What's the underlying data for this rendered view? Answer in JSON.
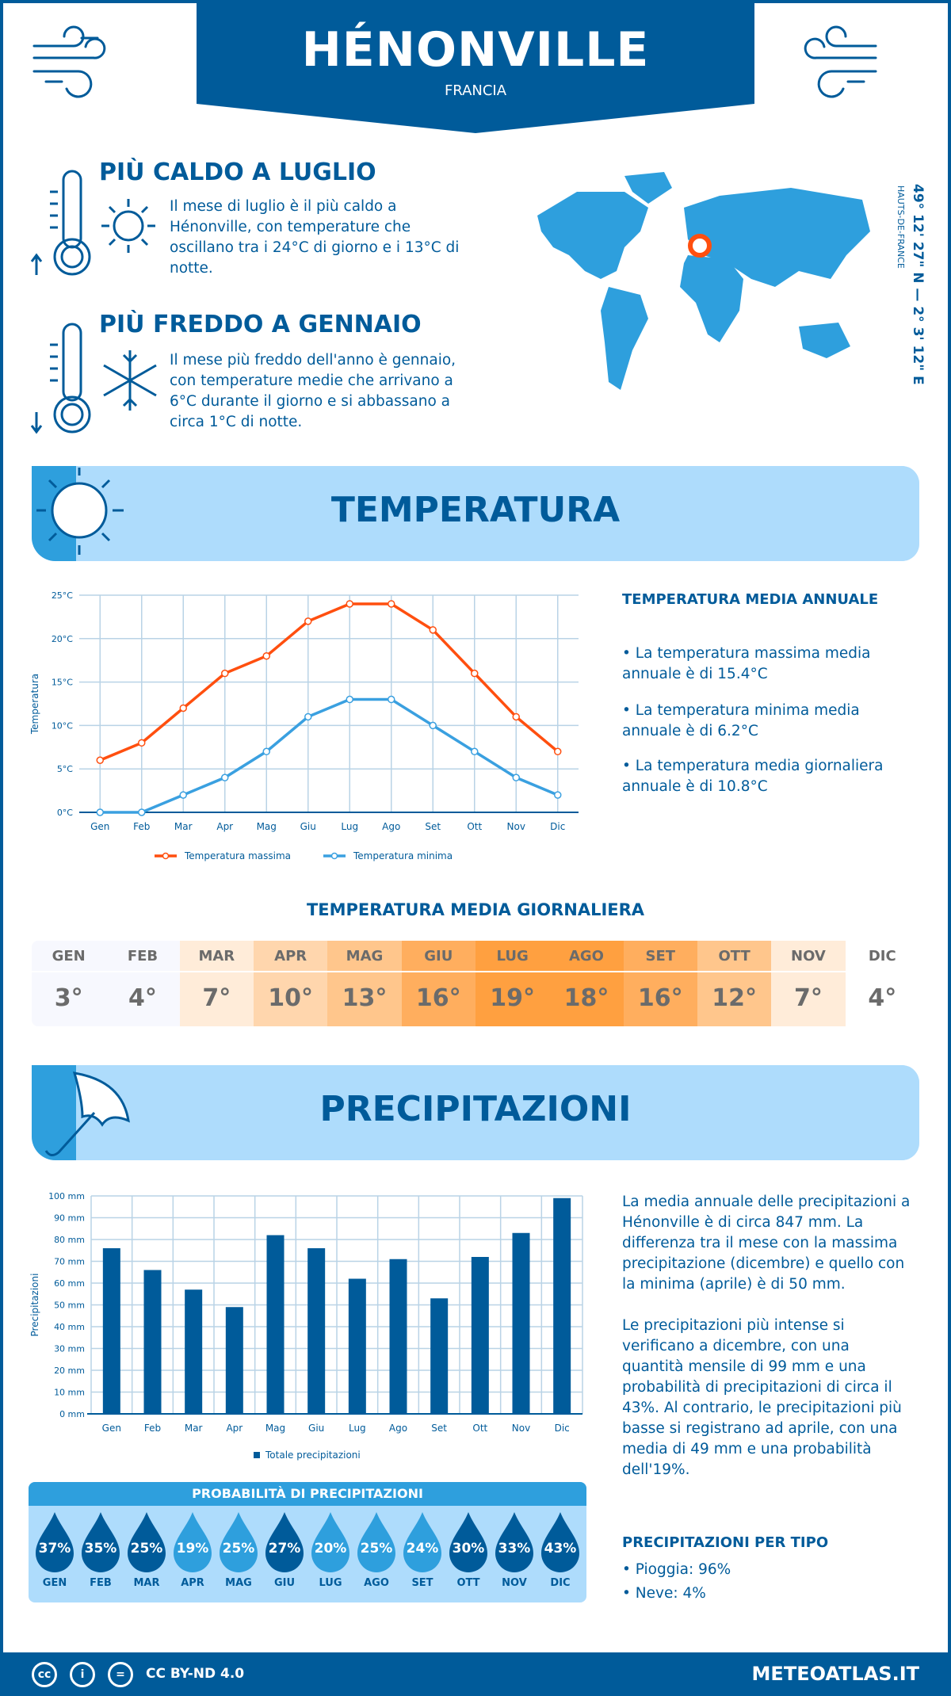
{
  "header": {
    "title": "HÉNONVILLE",
    "country": "FRANCIA"
  },
  "coords": {
    "text": "49° 12' 27\" N — 2° 3' 12\" E",
    "region": "HAUTS-DE-FRANCE"
  },
  "warmest": {
    "title": "PIÙ CALDO A LUGLIO",
    "text": "Il mese di luglio è il più caldo a Hénonville, con temperature che oscillano tra i 24°C di giorno e i 13°C di notte."
  },
  "coldest": {
    "title": "PIÙ FREDDO A GENNAIO",
    "text": "Il mese più freddo dell'anno è gennaio, con temperature medie che arrivano a 6°C durante il giorno e si abbassano a circa 1°C di notte."
  },
  "temperature": {
    "section_title": "TEMPERATURA",
    "annual_title": "TEMPERATURA MEDIA ANNUALE",
    "bullets": [
      "• La temperatura massima media annuale è di 15.4°C",
      "• La temperatura minima media annuale è di 6.2°C",
      "• La temperatura media giornaliera annuale è di 10.8°C"
    ],
    "daily_title": "TEMPERATURA MEDIA GIORNALIERA",
    "daily": [
      {
        "m": "GEN",
        "v": "3°",
        "c": "#f7f8fe"
      },
      {
        "m": "FEB",
        "v": "4°",
        "c": "#f7f8fe"
      },
      {
        "m": "MAR",
        "v": "7°",
        "c": "#ffecd9"
      },
      {
        "m": "APR",
        "v": "10°",
        "c": "#ffd6ad"
      },
      {
        "m": "MAG",
        "v": "13°",
        "c": "#ffc68c"
      },
      {
        "m": "GIU",
        "v": "16°",
        "c": "#ffae5e"
      },
      {
        "m": "LUG",
        "v": "19°",
        "c": "#ffa040"
      },
      {
        "m": "AGO",
        "v": "18°",
        "c": "#ffa040"
      },
      {
        "m": "SET",
        "v": "16°",
        "c": "#ffae5e"
      },
      {
        "m": "OTT",
        "v": "12°",
        "c": "#ffc68c"
      },
      {
        "m": "NOV",
        "v": "7°",
        "c": "#ffecd9"
      },
      {
        "m": "DIC",
        "v": "4°",
        "c": "#ffffff"
      }
    ]
  },
  "precipitation": {
    "section_title": "PRECIPITAZIONI",
    "text1": "La media annuale delle precipitazioni a Hénonville è di circa 847 mm. La differenza tra il mese con la massima precipitazione (dicembre) e quello con la minima (aprile) è di 50 mm.",
    "text2": "Le precipitazioni più intense si verificano a dicembre, con una quantità mensile di 99 mm e una probabilità di precipitazioni di circa il 43%. Al contrario, le precipitazioni più basse si registrano ad aprile, con una media di 49 mm e una probabilità dell'19%.",
    "prob_title": "PROBABILITÀ DI PRECIPITAZIONI",
    "prob": [
      {
        "m": "GEN",
        "v": "37%",
        "dark": true
      },
      {
        "m": "FEB",
        "v": "35%",
        "dark": true
      },
      {
        "m": "MAR",
        "v": "25%",
        "dark": true
      },
      {
        "m": "APR",
        "v": "19%",
        "dark": false
      },
      {
        "m": "MAG",
        "v": "25%",
        "dark": false
      },
      {
        "m": "GIU",
        "v": "27%",
        "dark": true
      },
      {
        "m": "LUG",
        "v": "20%",
        "dark": false
      },
      {
        "m": "AGO",
        "v": "25%",
        "dark": false
      },
      {
        "m": "SET",
        "v": "24%",
        "dark": false
      },
      {
        "m": "OTT",
        "v": "30%",
        "dark": true
      },
      {
        "m": "NOV",
        "v": "33%",
        "dark": true
      },
      {
        "m": "DIC",
        "v": "43%",
        "dark": true
      }
    ],
    "type_title": "PRECIPITAZIONI PER TIPO",
    "types": [
      "• Pioggia: 96%",
      "• Neve: 4%"
    ]
  },
  "footer": {
    "license": "CC BY-ND 4.0",
    "site": "METEOATLAS.IT"
  },
  "colors": {
    "dark_blue": "#005b9a",
    "mid_blue": "#2e9fdd",
    "light_blue": "#aedcfc",
    "max_line": "#ff4f0f",
    "min_line": "#3aa0e0"
  },
  "chart_data": [
    {
      "type": "line",
      "categories": [
        "Gen",
        "Feb",
        "Mar",
        "Apr",
        "Mag",
        "Giu",
        "Lug",
        "Ago",
        "Set",
        "Ott",
        "Nov",
        "Dic"
      ],
      "ylabel": "Temperatura",
      "ylim": [
        0,
        25
      ],
      "yticks": [
        "0°C",
        "5°C",
        "10°C",
        "15°C",
        "20°C",
        "25°C"
      ],
      "grid": true,
      "legend": "bottom",
      "series": [
        {
          "name": "Temperatura massima",
          "values": [
            6,
            8,
            12,
            16,
            18,
            22,
            24,
            24,
            21,
            16,
            11,
            7
          ]
        },
        {
          "name": "Temperatura minima",
          "values": [
            0,
            0,
            2,
            4,
            7,
            11,
            13,
            13,
            10,
            7,
            4,
            2
          ]
        }
      ]
    },
    {
      "type": "bar",
      "categories": [
        "Gen",
        "Feb",
        "Mar",
        "Apr",
        "Mag",
        "Giu",
        "Lug",
        "Ago",
        "Set",
        "Ott",
        "Nov",
        "Dic"
      ],
      "ylabel": "Precipitazioni",
      "ylim": [
        0,
        100
      ],
      "yticks": [
        "0 mm",
        "10 mm",
        "20 mm",
        "30 mm",
        "40 mm",
        "50 mm",
        "60 mm",
        "70 mm",
        "80 mm",
        "90 mm",
        "100 mm"
      ],
      "grid": true,
      "legend": "bottom",
      "series": [
        {
          "name": "Totale precipitazioni",
          "values": [
            76,
            66,
            57,
            49,
            82,
            76,
            62,
            71,
            53,
            72,
            83,
            99
          ]
        }
      ]
    }
  ]
}
